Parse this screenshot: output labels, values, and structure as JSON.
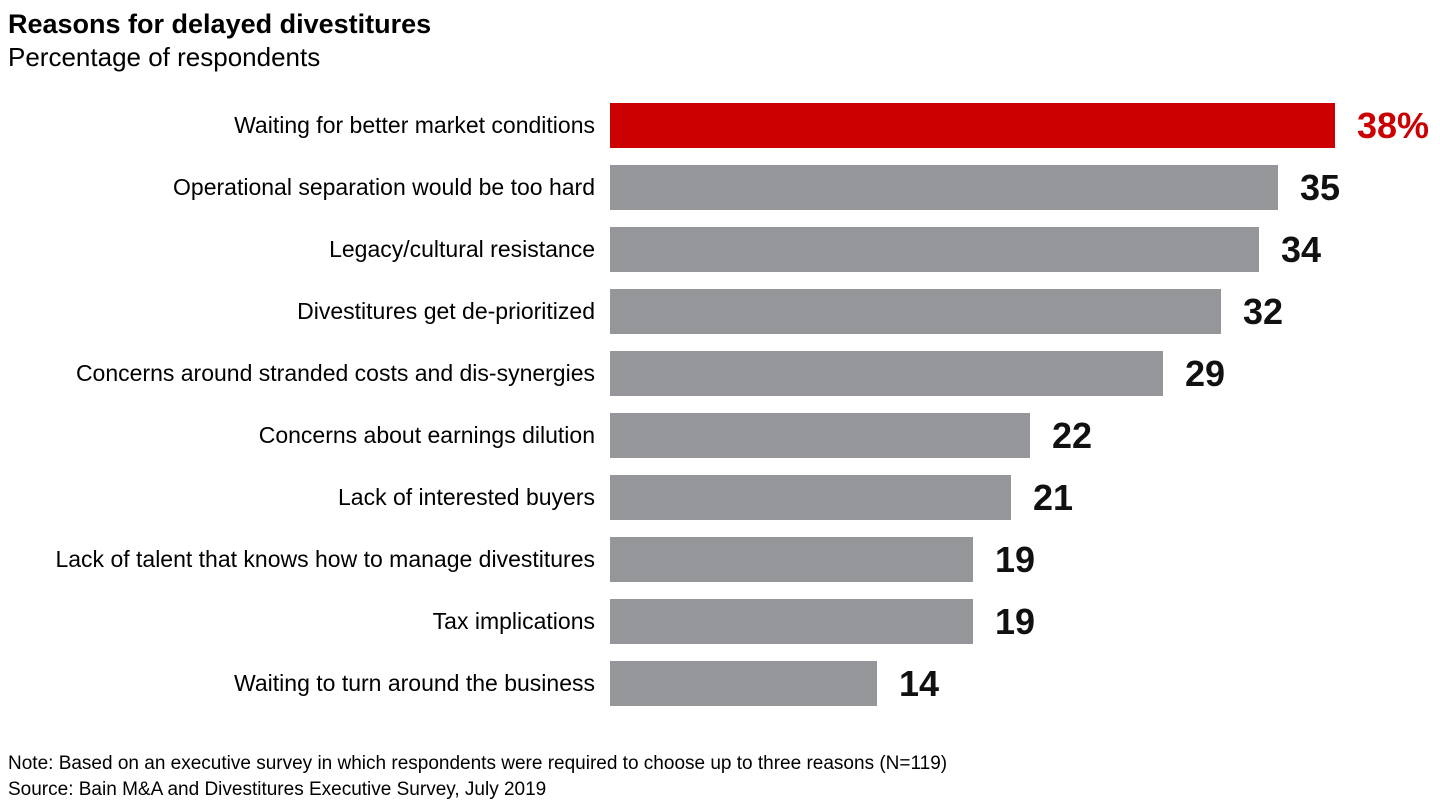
{
  "header": {
    "title": "Reasons for delayed divestitures",
    "subtitle": "Percentage of respondents"
  },
  "chart_data": {
    "type": "bar",
    "orientation": "horizontal",
    "title": "Reasons for delayed divestitures",
    "subtitle": "Percentage of respondents",
    "unit": "percent of respondents",
    "categories": [
      "Waiting for better market conditions",
      "Operational separation would be too hard",
      "Legacy/cultural resistance",
      "Divestitures get de-prioritized",
      "Concerns around stranded costs and dis-synergies",
      "Concerns about earnings dilution",
      "Lack of interested buyers",
      "Lack of talent that knows how to manage divestitures",
      "Tax implications",
      "Waiting to turn around the business"
    ],
    "values": [
      38,
      35,
      34,
      32,
      29,
      22,
      21,
      19,
      19,
      14
    ],
    "value_labels": [
      "38%",
      "35",
      "34",
      "32",
      "29",
      "22",
      "21",
      "19",
      "19",
      "14"
    ],
    "xlim": [
      0,
      38
    ],
    "grid": false,
    "legend": "none",
    "highlight_index": 0,
    "highlight_color": "#cc0000",
    "highlight_value_color": "#cc0000",
    "bar_color": "#95969a",
    "value_color": "#111111"
  },
  "footer": {
    "note": "Note: Based on an executive survey in which respondents were required to choose up to three reasons (N=119)",
    "source": "Source: Bain M&A and Divestitures Executive Survey, July 2019"
  }
}
